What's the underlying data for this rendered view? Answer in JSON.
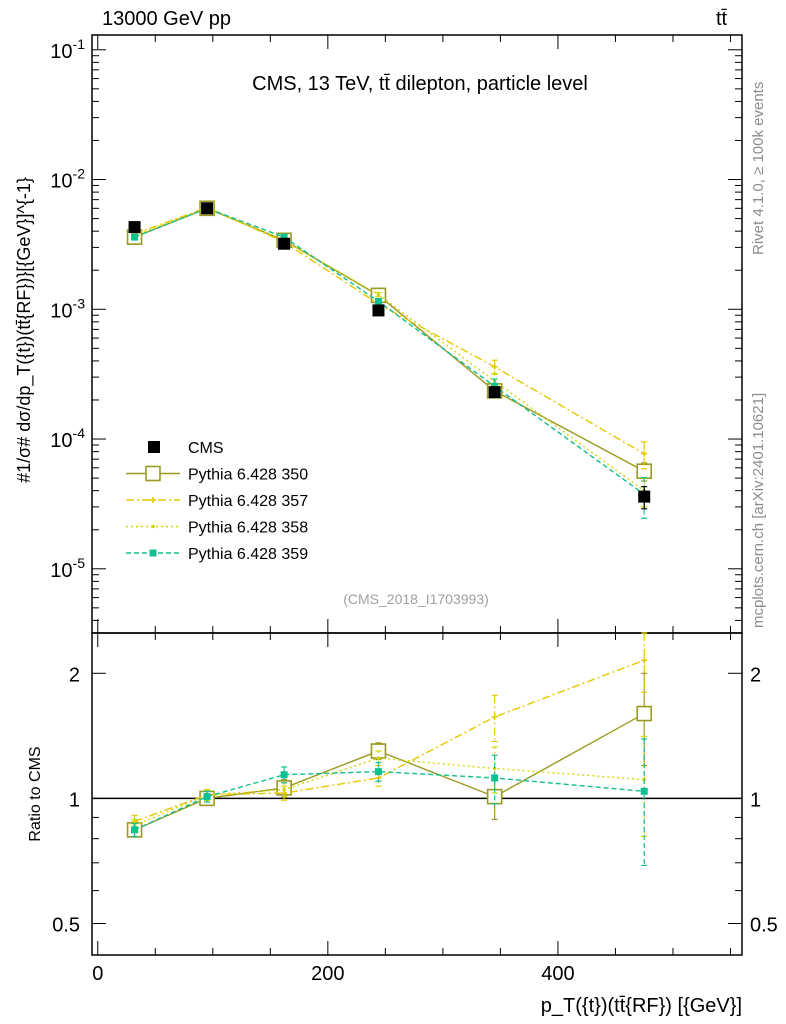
{
  "header": {
    "energy_label": "13000 GeV pp",
    "process_label": "tt̄"
  },
  "side_labels": {
    "rivet": "Rivet 4.1.0, ≥ 100k events",
    "mcplots": "mcplots.cern.ch [arXiv:2401.10621]"
  },
  "colors": {
    "cms": "#000000",
    "p350": "#9a9a20",
    "p357": "#e6c800",
    "p358": "#d6d600",
    "p359": "#10c090"
  },
  "chart_data": [
    {
      "type": "line",
      "panel": "main",
      "title": "CMS, 13 TeV, tt̄ dilepton, particle level",
      "watermark": "(CMS_2018_I1703993)",
      "ylabel": "#1/σ# dσ/dp_T({t})(tt̄{RF})}[{GeV}]^{-1}",
      "yscale": "log",
      "xlim": [
        -5,
        560
      ],
      "ylim": [
        3.2e-06,
        0.13
      ],
      "y_ticks": [
        "10^-5",
        "10^-4",
        "10^-3",
        "10^-2",
        "10^-1"
      ],
      "legend": "left",
      "series": [
        {
          "name": "CMS",
          "color_key": "cms",
          "style": "data",
          "x": [
            32,
            95,
            162,
            244,
            345,
            475
          ],
          "y": [
            0.0043,
            0.006,
            0.0032,
            0.00098,
            0.00023,
            3.6e-05
          ],
          "err": [
            0.00015,
            0.0002,
            0.00012,
            4e-05,
            2e-05,
            7e-06
          ]
        },
        {
          "name": "Pythia 6.428 350",
          "color_key": "p350",
          "style": "solid-opensquare",
          "x": [
            32,
            95,
            162,
            244,
            345,
            475
          ],
          "y": [
            0.0036,
            0.006,
            0.0034,
            0.00128,
            0.000235,
            5.65e-05
          ],
          "err": [
            0.0001,
            0.00015,
            0.0001,
            5e-05,
            1.5e-05,
            9e-06
          ]
        },
        {
          "name": "Pythia 6.428 357",
          "color_key": "p357",
          "style": "dashdot-cross",
          "x": [
            32,
            95,
            162,
            244,
            345,
            475
          ],
          "y": [
            0.0038,
            0.0061,
            0.0033,
            0.0011,
            0.00036,
            7.7e-05
          ],
          "err": [
            0.0001,
            0.00015,
            0.0001,
            5e-05,
            4.5e-05,
            1.8e-05
          ]
        },
        {
          "name": "Pythia 6.428 358",
          "color_key": "p358",
          "style": "dotted-dot",
          "x": [
            32,
            95,
            162,
            244,
            345,
            475
          ],
          "y": [
            0.0037,
            0.0061,
            0.0034,
            0.0013,
            0.00028,
            4e-05
          ],
          "err": [
            0.0001,
            0.00015,
            0.0001,
            5e-05,
            4e-05,
            1e-05
          ]
        },
        {
          "name": "Pythia 6.428 359",
          "color_key": "p359",
          "style": "dashed-square",
          "x": [
            32,
            95,
            162,
            244,
            345,
            475
          ],
          "y": [
            0.0036,
            0.006,
            0.0036,
            0.00115,
            0.000255,
            3.75e-05
          ],
          "err": [
            0.0001,
            0.00015,
            0.0001,
            5e-05,
            3.5e-05,
            1.3e-05
          ]
        }
      ]
    },
    {
      "type": "line",
      "panel": "ratio",
      "xlabel": "p_T({t})(tt̄{RF}) [{GeV}]",
      "ylabel": "Ratio to CMS",
      "yscale": "log",
      "xlim": [
        -5,
        560
      ],
      "ylim": [
        0.42,
        2.5
      ],
      "y_ticks": [
        "0.5",
        "1",
        "2"
      ],
      "x_ticks": [
        "0",
        "200",
        "400"
      ],
      "series": [
        {
          "name": "Pythia 6.428 350",
          "color_key": "p350",
          "style": "solid-opensquare",
          "x": [
            32,
            95,
            162,
            244,
            345,
            475
          ],
          "y": [
            0.84,
            1.0,
            1.06,
            1.3,
            1.01,
            1.6
          ],
          "err": [
            0.03,
            0.03,
            0.05,
            0.06,
            0.12,
            0.4
          ]
        },
        {
          "name": "Pythia 6.428 357",
          "color_key": "p357",
          "style": "dashdot-cross",
          "x": [
            32,
            95,
            162,
            244,
            345,
            475
          ],
          "y": [
            0.88,
            1.02,
            1.03,
            1.12,
            1.57,
            2.15
          ],
          "err": [
            0.03,
            0.03,
            0.04,
            0.05,
            0.2,
            0.35
          ]
        },
        {
          "name": "Pythia 6.428 358",
          "color_key": "p358",
          "style": "dotted-dot",
          "x": [
            32,
            95,
            162,
            244,
            345,
            475
          ],
          "y": [
            0.86,
            1.02,
            1.05,
            1.25,
            1.18,
            1.11
          ],
          "err": [
            0.03,
            0.03,
            0.04,
            0.05,
            0.15,
            0.3
          ]
        },
        {
          "name": "Pythia 6.428 359",
          "color_key": "p359",
          "style": "dashed-square",
          "x": [
            32,
            95,
            162,
            244,
            345,
            475
          ],
          "y": [
            0.84,
            1.01,
            1.14,
            1.16,
            1.12,
            1.04
          ],
          "err": [
            0.03,
            0.03,
            0.05,
            0.06,
            0.15,
            0.35
          ]
        }
      ]
    }
  ]
}
